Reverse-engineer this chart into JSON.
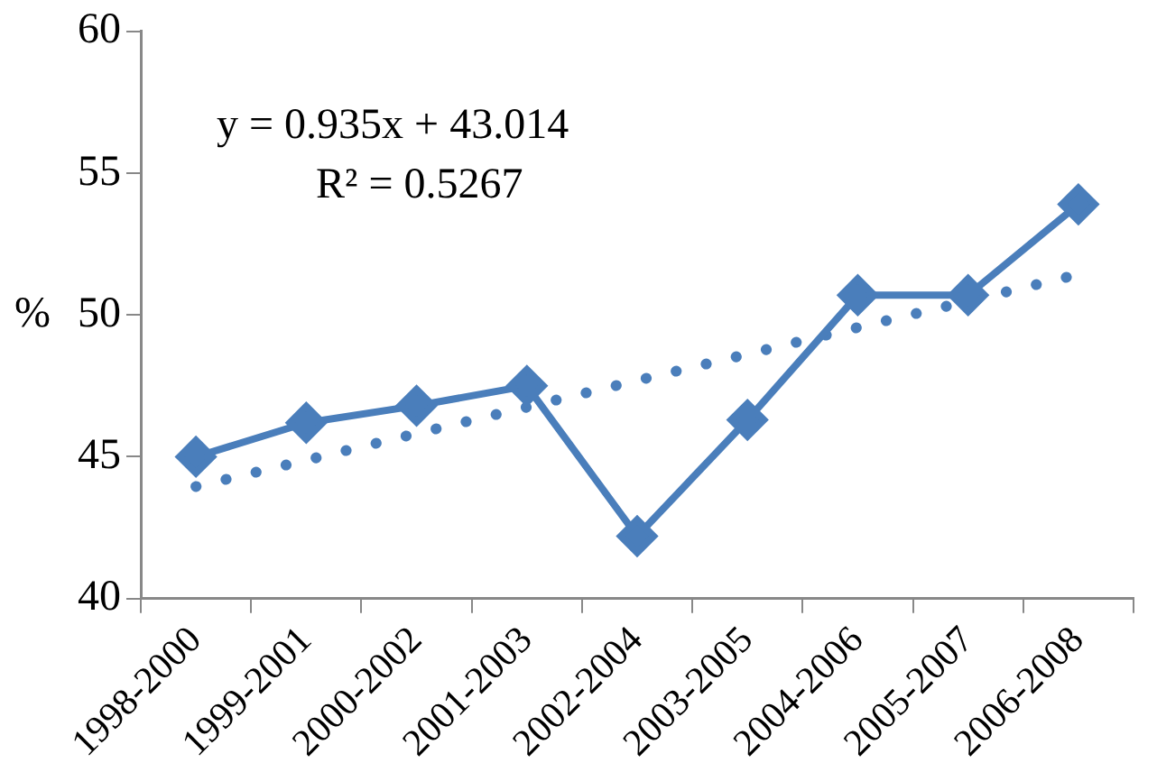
{
  "chart_data": {
    "type": "line",
    "ylabel": "%",
    "categories": [
      "1998-2000",
      "1999-2001",
      "2000-2002",
      "2001-2003",
      "2002-2004",
      "2003-2005",
      "2004-2006",
      "2005-2007",
      "2006-2008"
    ],
    "series": [
      {
        "color": "#4a7ebb",
        "marker": "diamond",
        "line_style": "solid",
        "values": [
          45.0,
          46.2,
          46.8,
          47.5,
          42.2,
          46.3,
          50.7,
          50.7,
          53.9
        ]
      },
      {
        "color": "#4a7ebb",
        "marker": "none",
        "line_style": "dotted",
        "values": [
          43.95,
          44.88,
          45.82,
          46.75,
          47.69,
          48.62,
          49.56,
          50.49,
          51.43
        ]
      }
    ],
    "ylim": [
      40,
      60
    ],
    "yticks": [
      40,
      45,
      50,
      55,
      60
    ],
    "grid": false,
    "legend": false,
    "annotations": [
      "y = 0.935x + 43.014",
      "R² = 0.5267"
    ]
  }
}
